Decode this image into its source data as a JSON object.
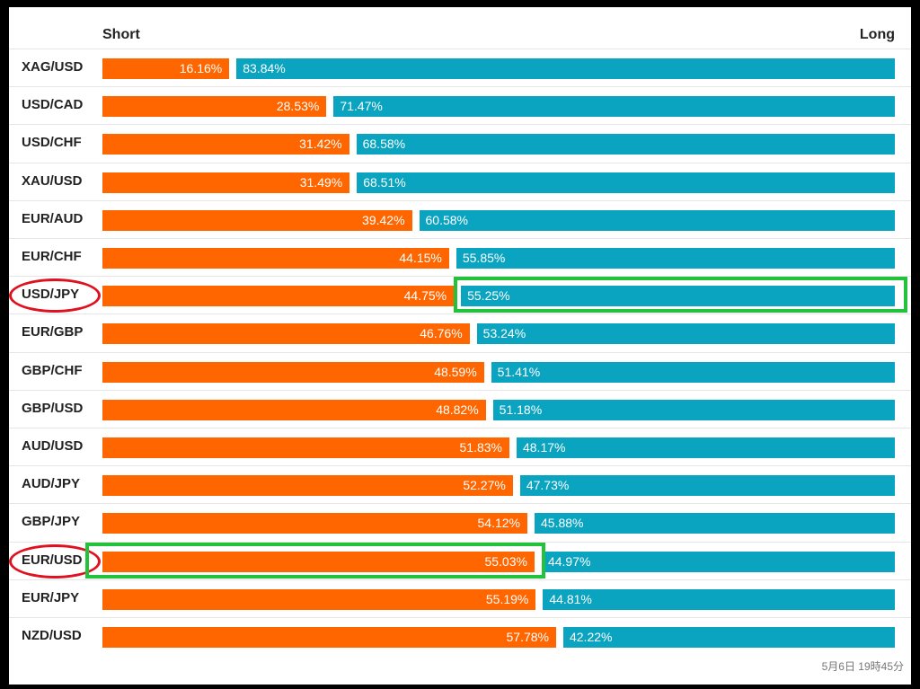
{
  "chart_data": {
    "type": "bar",
    "orientation": "horizontal-stacked",
    "header": {
      "short_label": "Short",
      "long_label": "Long"
    },
    "categories": [
      "XAG/USD",
      "USD/CAD",
      "USD/CHF",
      "XAU/USD",
      "EUR/AUD",
      "EUR/CHF",
      "USD/JPY",
      "EUR/GBP",
      "GBP/CHF",
      "GBP/USD",
      "AUD/USD",
      "AUD/JPY",
      "GBP/JPY",
      "EUR/USD",
      "EUR/JPY",
      "NZD/USD"
    ],
    "series": [
      {
        "name": "Short",
        "color": "#ff6600",
        "values": [
          16.16,
          28.53,
          31.42,
          31.49,
          39.42,
          44.15,
          44.75,
          46.76,
          48.59,
          48.82,
          51.83,
          52.27,
          54.12,
          55.03,
          55.19,
          57.78
        ],
        "labels": [
          "16.16%",
          "28.53%",
          "31.42%",
          "31.49%",
          "39.42%",
          "44.15%",
          "44.75%",
          "46.76%",
          "48.59%",
          "48.82%",
          "51.83%",
          "52.27%",
          "54.12%",
          "55.03%",
          "55.19%",
          "57.78%"
        ]
      },
      {
        "name": "Long",
        "color": "#0aa4c0",
        "values": [
          83.84,
          71.47,
          68.58,
          68.51,
          60.58,
          55.85,
          55.25,
          53.24,
          51.41,
          51.18,
          48.17,
          47.73,
          45.88,
          44.97,
          44.81,
          42.22
        ],
        "labels": [
          "83.84%",
          "71.47%",
          "68.58%",
          "68.51%",
          "60.58%",
          "55.85%",
          "55.25%",
          "53.24%",
          "51.41%",
          "51.18%",
          "48.17%",
          "47.73%",
          "45.88%",
          "44.97%",
          "44.81%",
          "42.22%"
        ]
      }
    ],
    "xlim": [
      0,
      100
    ],
    "annotations": {
      "red_circled_pairs": [
        "USD/JPY",
        "EUR/USD"
      ],
      "green_boxed": [
        {
          "pair": "USD/JPY",
          "series": "Long"
        },
        {
          "pair": "EUR/USD",
          "series": "Short"
        }
      ]
    }
  },
  "footer": {
    "timestamp": "5月6日 19時45分"
  }
}
